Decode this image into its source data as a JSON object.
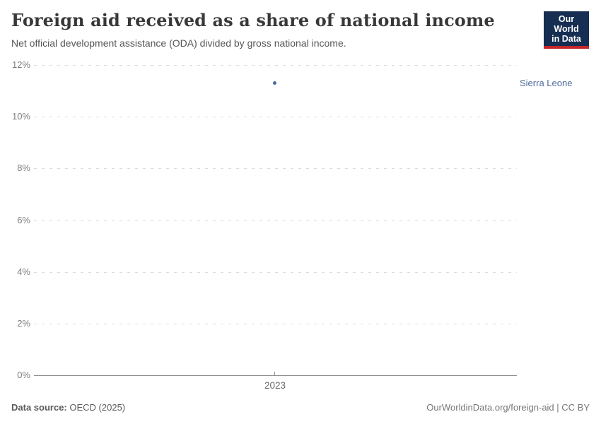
{
  "header": {
    "title": "Foreign aid received as a share of national income",
    "subtitle": "Net official development assistance (ODA) divided by gross national income.",
    "logo": {
      "line1": "Our World",
      "line2": "in Data",
      "bg_color": "#152e52",
      "accent_color": "#c5262b"
    }
  },
  "chart_data": {
    "type": "scatter",
    "title": "Foreign aid received as a share of national income",
    "subtitle": "Net official development assistance (ODA) divided by gross national income.",
    "unit": "%",
    "ylim": [
      0,
      12
    ],
    "yticks": [
      {
        "value": 0,
        "label": "0%"
      },
      {
        "value": 2,
        "label": "2%"
      },
      {
        "value": 4,
        "label": "4%"
      },
      {
        "value": 6,
        "label": "6%"
      },
      {
        "value": 8,
        "label": "8%"
      },
      {
        "value": 10,
        "label": "10%"
      },
      {
        "value": 12,
        "label": "12%"
      }
    ],
    "xticks": [
      {
        "value": 2023,
        "label": "2023"
      }
    ],
    "grid": "horizontal-dashed",
    "legend_position": "right-of-point",
    "series": [
      {
        "name": "Sierra Leone",
        "color": "#4c6a9c",
        "points": [
          {
            "year": 2023,
            "value": 11.3
          }
        ]
      }
    ]
  },
  "footer": {
    "datasource_label": "Data source:",
    "datasource_value": "OECD (2025)",
    "attribution": "OurWorldinData.org/foreign-aid | CC BY"
  }
}
